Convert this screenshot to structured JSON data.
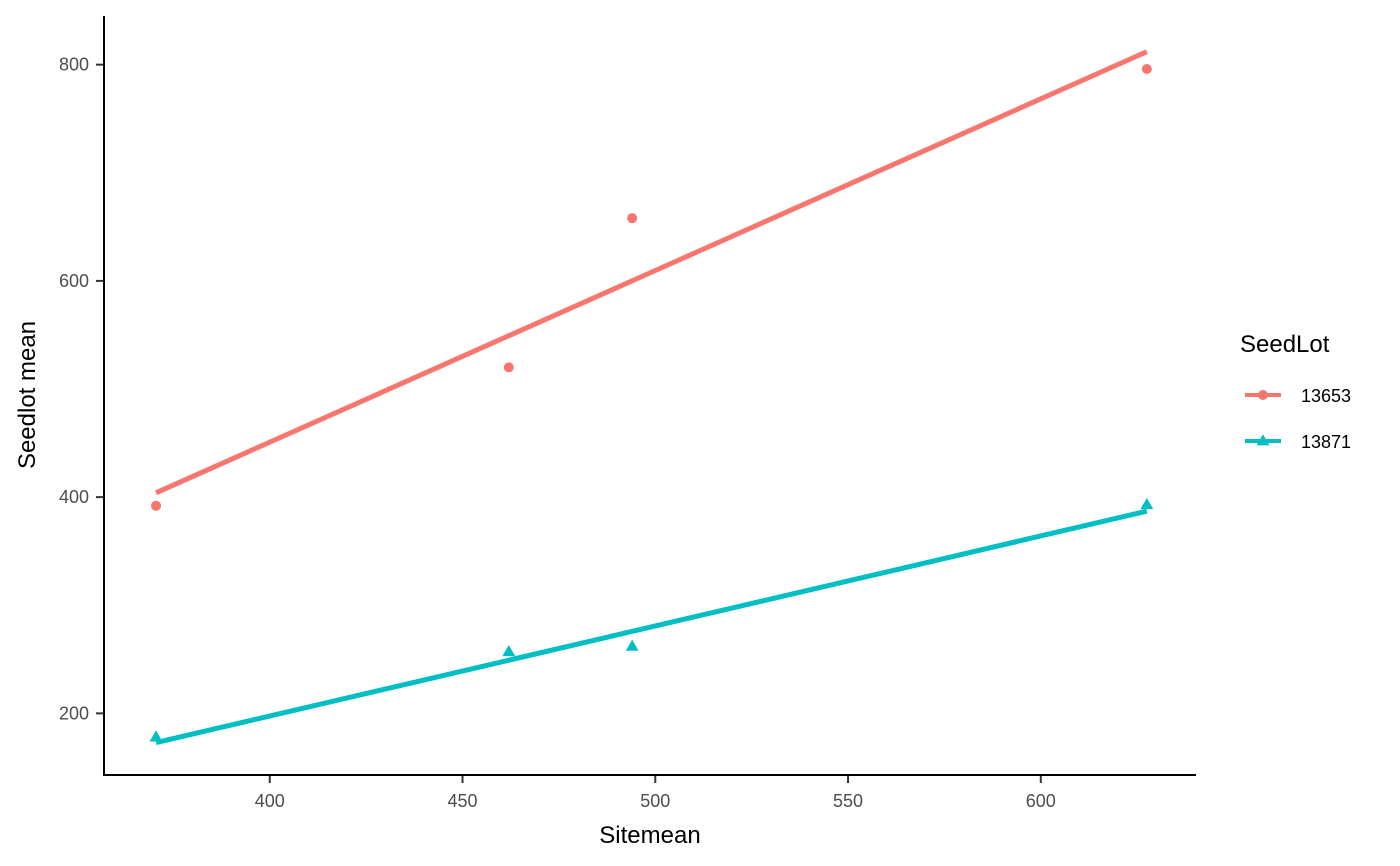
{
  "chart_data": {
    "type": "scatter",
    "xlabel": "Sitemean",
    "ylabel": "Seedlot mean",
    "xlim": [
      357,
      640
    ],
    "ylim": [
      143,
      845
    ],
    "xticks": [
      400,
      450,
      500,
      550,
      600
    ],
    "yticks": [
      200,
      400,
      600,
      800
    ],
    "grid": false,
    "legend_title": "SeedLot",
    "legend_position": "right",
    "series": [
      {
        "name": "13653",
        "color": "#F8766D",
        "marker": "circle",
        "points": [
          {
            "x": 370.5,
            "y": 392
          },
          {
            "x": 462,
            "y": 520
          },
          {
            "x": 494,
            "y": 658
          },
          {
            "x": 627.5,
            "y": 796
          }
        ],
        "fit": [
          {
            "x": 370.5,
            "y": 404
          },
          {
            "x": 627.5,
            "y": 812
          }
        ]
      },
      {
        "name": "13871",
        "color": "#00BFC4",
        "marker": "triangle",
        "points": [
          {
            "x": 370.5,
            "y": 178
          },
          {
            "x": 462,
            "y": 257
          },
          {
            "x": 494,
            "y": 262
          },
          {
            "x": 627.5,
            "y": 393
          }
        ],
        "fit": [
          {
            "x": 370.5,
            "y": 173
          },
          {
            "x": 627.5,
            "y": 387
          }
        ]
      }
    ]
  }
}
